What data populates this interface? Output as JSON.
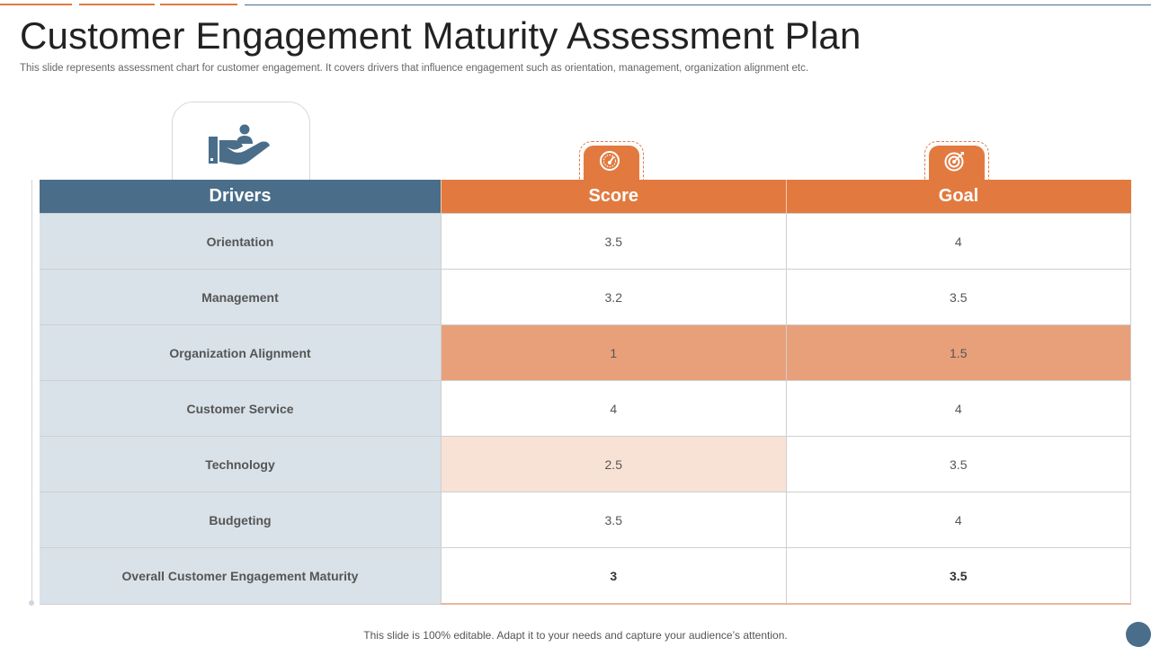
{
  "slide": {
    "title": "Customer Engagement Maturity Assessment Plan",
    "subtitle": "This slide represents assessment chart for customer engagement. It covers drivers that influence engagement such as orientation, management, organization alignment etc.",
    "footer": "This slide is 100% editable. Adapt it to your needs and capture your audience’s attention."
  },
  "icons": {
    "drivers": "hand-holding-person-icon",
    "score": "speedometer-icon",
    "goal": "target-icon"
  },
  "colors": {
    "accent_orange": "#e27a3f",
    "accent_blue": "#4a6e8a",
    "highlight_dark": "#e8a07a",
    "highlight_light": "#f8e2d6",
    "driver_bg": "#d9e2e9"
  },
  "table": {
    "headers": {
      "drivers": "Drivers",
      "score": "Score",
      "goal": "Goal"
    },
    "rows": [
      {
        "driver": "Orientation",
        "score": "3.5",
        "goal": "4"
      },
      {
        "driver": "Management",
        "score": "3.2",
        "goal": "3.5"
      },
      {
        "driver": "Organization Alignment",
        "score": "1",
        "goal": "1.5"
      },
      {
        "driver": "Customer Service",
        "score": "4",
        "goal": "4"
      },
      {
        "driver": "Technology",
        "score": "2.5",
        "goal": "3.5"
      },
      {
        "driver": "Budgeting",
        "score": "3.5",
        "goal": "4"
      },
      {
        "driver": "Overall Customer Engagement Maturity",
        "score": "3",
        "goal": "3.5"
      }
    ]
  }
}
